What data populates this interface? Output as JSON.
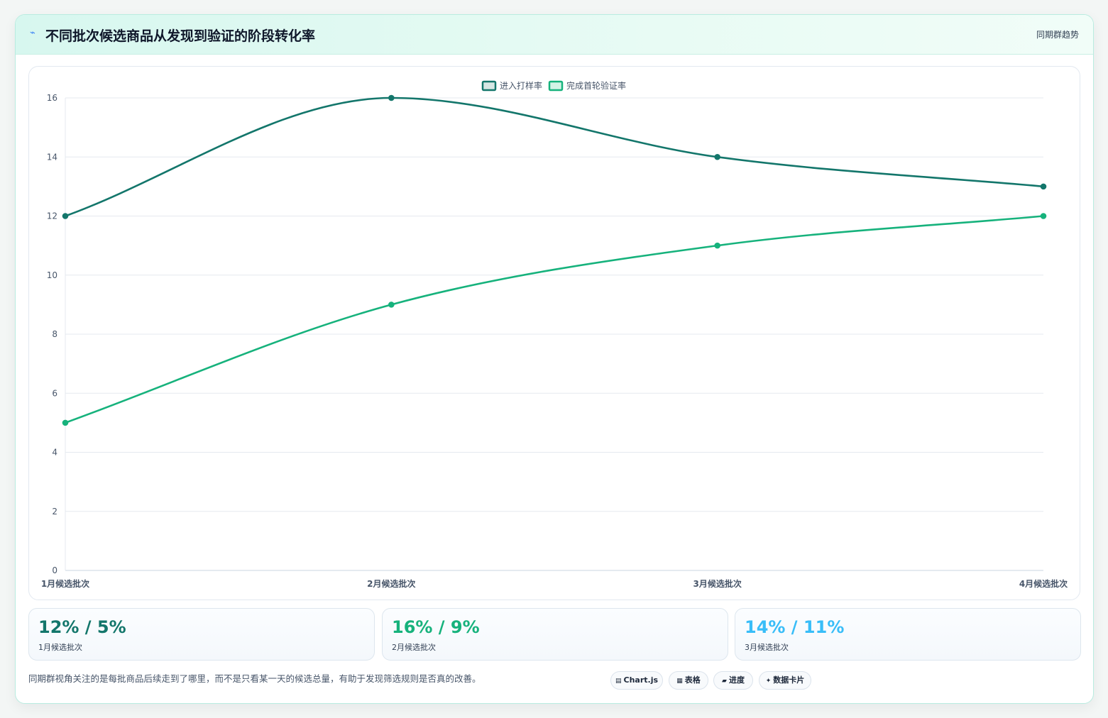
{
  "header": {
    "title": "不同批次候选商品从发现到验证的阶段转化率",
    "tag": "同期群趋势",
    "icon": "bolt-icon"
  },
  "chart_data": {
    "type": "line",
    "categories": [
      "1月候选批次",
      "2月候选批次",
      "3月候选批次",
      "4月候选批次"
    ],
    "series": [
      {
        "name": "进入打样率",
        "values": [
          12,
          16,
          14,
          13
        ],
        "color": "#13766b"
      },
      {
        "name": "完成首轮验证率",
        "values": [
          5,
          9,
          11,
          12
        ],
        "color": "#16b27c"
      }
    ],
    "ylim": [
      0,
      16
    ],
    "yticks": [
      0,
      2,
      4,
      6,
      8,
      10,
      12,
      14,
      16
    ],
    "grid": true,
    "legend": "top-center",
    "smooth": true
  },
  "kpis": [
    {
      "value": "12% / 5%",
      "label": "1月候选批次",
      "color": "#13766b"
    },
    {
      "value": "16% / 9%",
      "label": "2月候选批次",
      "color": "#16b27c"
    },
    {
      "value": "14% / 11%",
      "label": "3月候选批次",
      "color": "#38bdf8"
    }
  ],
  "footer": {
    "note": "同期群视角关注的是每批商品后续走到了哪里，而不是只看某一天的候选总量，有助于发现筛选规则是否真的改善。",
    "chips": [
      {
        "icon": "▤",
        "label": "Chart.js"
      },
      {
        "icon": "▦",
        "label": "表格"
      },
      {
        "icon": "▰",
        "label": "进度"
      },
      {
        "icon": "✦",
        "label": "数据卡片"
      }
    ]
  }
}
